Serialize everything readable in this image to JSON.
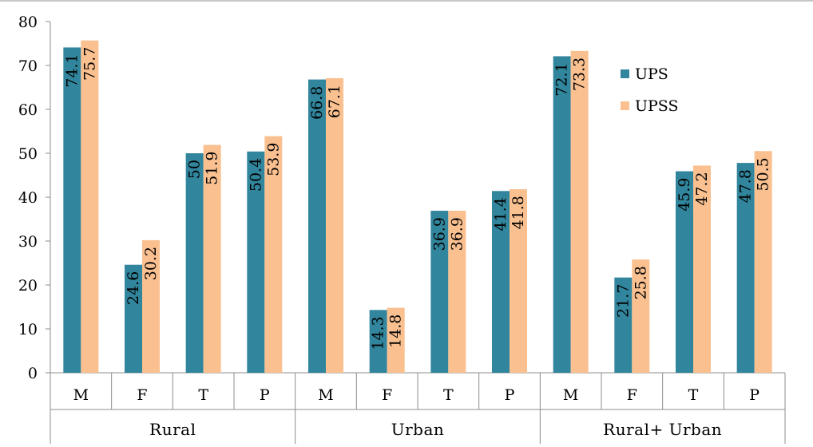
{
  "chart_data": {
    "type": "bar",
    "groups": [
      "Rural",
      "Urban",
      "Rural+ Urban"
    ],
    "categories": [
      "M",
      "F",
      "T",
      "P",
      "M",
      "F",
      "T",
      "P",
      "M",
      "F",
      "T",
      "P"
    ],
    "series": [
      {
        "name": "UPS",
        "color": "#31859c",
        "values": [
          74.1,
          24.6,
          50,
          50.4,
          66.8,
          14.3,
          36.9,
          41.4,
          72.1,
          21.7,
          45.9,
          47.8
        ]
      },
      {
        "name": "UPSS",
        "color": "#fac090",
        "values": [
          75.7,
          30.2,
          51.9,
          53.9,
          67.1,
          14.8,
          36.9,
          41.8,
          73.3,
          25.8,
          47.2,
          50.5
        ]
      }
    ],
    "ylim": [
      0,
      80
    ],
    "yticks": [
      0,
      10,
      20,
      30,
      40,
      50,
      60,
      70,
      80
    ],
    "title": "",
    "xlabel": "",
    "ylabel": "",
    "legend_position": "top-right",
    "grid": false
  }
}
